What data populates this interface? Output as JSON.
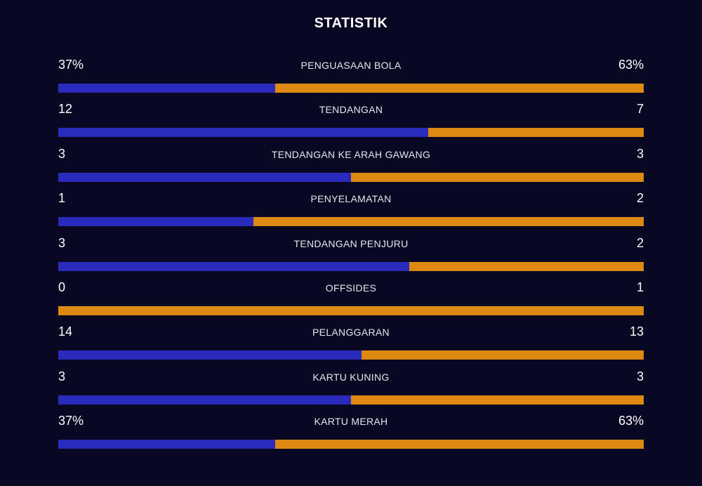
{
  "title": "STATISTIK",
  "colors": {
    "background": "#080822",
    "home": "#2a2abd",
    "away": "#de8a12"
  },
  "stats": [
    {
      "label": "PENGUASAAN BOLA",
      "left": "37%",
      "right": "63%",
      "left_share": 0.37
    },
    {
      "label": "TENDANGAN",
      "left": "12",
      "right": "7",
      "left_share": 0.6316
    },
    {
      "label": "TENDANGAN KE ARAH GAWANG",
      "left": "3",
      "right": "3",
      "left_share": 0.5
    },
    {
      "label": "PENYELAMATAN",
      "left": "1",
      "right": "2",
      "left_share": 0.3333
    },
    {
      "label": "TENDANGAN PENJURU",
      "left": "3",
      "right": "2",
      "left_share": 0.6
    },
    {
      "label": "OFFSIDES",
      "left": "0",
      "right": "1",
      "left_share": 0
    },
    {
      "label": "PELANGGARAN",
      "left": "14",
      "right": "13",
      "left_share": 0.5185
    },
    {
      "label": "KARTU KUNING",
      "left": "3",
      "right": "3",
      "left_share": 0.5
    },
    {
      "label": "KARTU MERAH",
      "left": "37%",
      "right": "63%",
      "left_share": 0.37
    }
  ]
}
